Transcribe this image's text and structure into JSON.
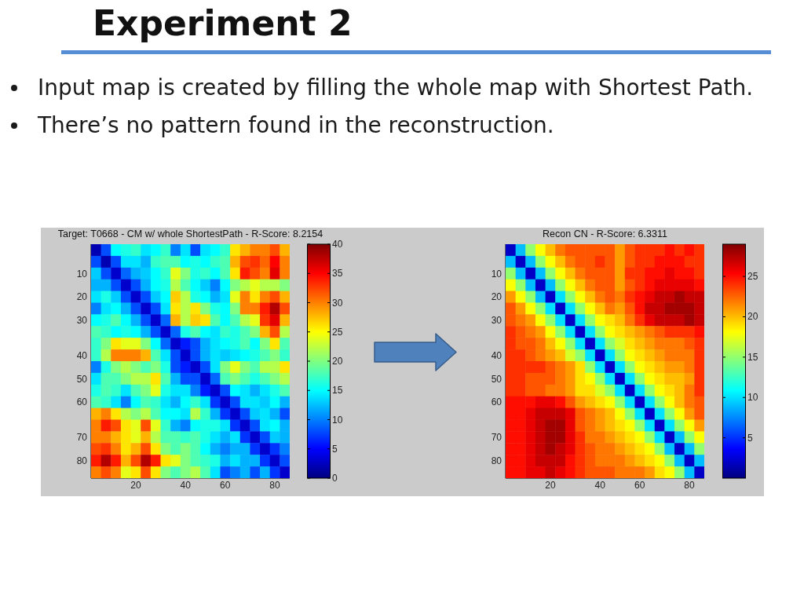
{
  "chart_data": [
    {
      "type": "other",
      "title": "Experiment 2",
      "annotations": [
        "Input map is created by filling the whole map with Shortest Path.",
        "There’s no pattern found in the reconstruction."
      ]
    },
    {
      "type": "heatmap",
      "title": "Target: T0668 - CM w/ whole ShortestPath - R-Score: 8.2154",
      "categories": [
        null,
        null,
        null,
        null,
        "20",
        null,
        null,
        null,
        null,
        "40",
        null,
        null,
        null,
        "60",
        null,
        null,
        null,
        null,
        "80",
        null
      ],
      "y_categories": [
        null,
        null,
        "10",
        null,
        "20",
        null,
        "30",
        null,
        null,
        "40",
        null,
        "50",
        null,
        "60",
        null,
        null,
        "70",
        null,
        "80",
        null
      ],
      "cells": [
        [
          2,
          8,
          15,
          16,
          17,
          14,
          15,
          17,
          10,
          14,
          8,
          14,
          15,
          17,
          26,
          28,
          30,
          30,
          32,
          28
        ],
        [
          8,
          2,
          8,
          14,
          14,
          12,
          17,
          18,
          18,
          15,
          16,
          15,
          17,
          18,
          28,
          32,
          33,
          31,
          35,
          30
        ],
        [
          13,
          8,
          3,
          9,
          12,
          13,
          15,
          17,
          24,
          20,
          16,
          17,
          15,
          18,
          26,
          34,
          32,
          30,
          36,
          30
        ],
        [
          12,
          12,
          8,
          3,
          8,
          12,
          15,
          16,
          22,
          18,
          15,
          13,
          10,
          15,
          20,
          22,
          24,
          22,
          22,
          20
        ],
        [
          14,
          16,
          13,
          8,
          3,
          8,
          13,
          15,
          27,
          22,
          16,
          15,
          12,
          14,
          24,
          30,
          26,
          30,
          32,
          28
        ],
        [
          10,
          14,
          15,
          12,
          8,
          3,
          8,
          14,
          26,
          22,
          26,
          20,
          16,
          15,
          20,
          30,
          30,
          34,
          38,
          32
        ],
        [
          15,
          16,
          18,
          15,
          12,
          8,
          3,
          9,
          28,
          22,
          27,
          26,
          18,
          15,
          18,
          22,
          24,
          33,
          36,
          28
        ],
        [
          18,
          17,
          15,
          16,
          15,
          12,
          8,
          3,
          9,
          16,
          18,
          15,
          14,
          17,
          16,
          18,
          20,
          28,
          32,
          22
        ],
        [
          17,
          20,
          26,
          24,
          24,
          20,
          15,
          9,
          3,
          6,
          8,
          12,
          14,
          15,
          16,
          18,
          15,
          20,
          26,
          18
        ],
        [
          17,
          22,
          30,
          30,
          30,
          28,
          18,
          14,
          8,
          3,
          8,
          12,
          14,
          13,
          14,
          15,
          16,
          18,
          20,
          17
        ],
        [
          10,
          16,
          20,
          22,
          20,
          18,
          20,
          16,
          8,
          6,
          3,
          8,
          14,
          20,
          24,
          20,
          18,
          22,
          22,
          26
        ],
        [
          14,
          18,
          18,
          20,
          22,
          22,
          26,
          18,
          12,
          8,
          8,
          3,
          9,
          18,
          20,
          18,
          16,
          18,
          20,
          22
        ],
        [
          16,
          18,
          17,
          14,
          18,
          20,
          24,
          16,
          14,
          14,
          10,
          6,
          3,
          8,
          15,
          14,
          12,
          14,
          16,
          18
        ],
        [
          18,
          17,
          14,
          10,
          15,
          18,
          17,
          14,
          12,
          15,
          17,
          14,
          7,
          3,
          8,
          14,
          14,
          13,
          15,
          12
        ],
        [
          28,
          30,
          26,
          22,
          20,
          22,
          18,
          15,
          15,
          14,
          22,
          17,
          12,
          7,
          3,
          8,
          13,
          14,
          12,
          8
        ],
        [
          30,
          34,
          32,
          26,
          24,
          32,
          24,
          17,
          12,
          10,
          15,
          16,
          16,
          14,
          7,
          3,
          8,
          14,
          15,
          12
        ],
        [
          30,
          30,
          28,
          26,
          24,
          28,
          22,
          18,
          18,
          17,
          18,
          16,
          14,
          12,
          14,
          7,
          3,
          8,
          13,
          12
        ],
        [
          32,
          33,
          30,
          26,
          28,
          32,
          26,
          20,
          18,
          20,
          18,
          15,
          12,
          10,
          12,
          12,
          7,
          3,
          7,
          10
        ],
        [
          34,
          38,
          34,
          28,
          32,
          38,
          34,
          26,
          24,
          20,
          18,
          17,
          16,
          12,
          14,
          12,
          12,
          7,
          3,
          8
        ],
        [
          30,
          32,
          30,
          24,
          26,
          32,
          26,
          20,
          18,
          20,
          22,
          18,
          14,
          8,
          10,
          12,
          8,
          12,
          7,
          3
        ]
      ],
      "clim": [
        0,
        40
      ],
      "cticks": [
        0,
        5,
        10,
        15,
        20,
        25,
        30,
        35,
        40
      ]
    },
    {
      "type": "heatmap",
      "title": "Recon CN - R-Score: 6.3311",
      "categories": [
        null,
        null,
        null,
        null,
        "20",
        null,
        null,
        null,
        null,
        "40",
        null,
        null,
        null,
        "60",
        null,
        null,
        null,
        null,
        "80",
        null
      ],
      "y_categories": [
        null,
        null,
        "10",
        null,
        "20",
        null,
        "30",
        null,
        null,
        "40",
        null,
        "50",
        null,
        "60",
        null,
        null,
        "70",
        null,
        "80",
        null
      ],
      "cells": [
        [
          2,
          9,
          15,
          18,
          20,
          22,
          23,
          23,
          23,
          23,
          23,
          21,
          23,
          24,
          24,
          24,
          25,
          24,
          25,
          24
        ],
        [
          9,
          2,
          9,
          15,
          18,
          20,
          22,
          23,
          23,
          24,
          23,
          21,
          23,
          24,
          24,
          25,
          25,
          25,
          24,
          24
        ],
        [
          15,
          9,
          2,
          9,
          15,
          18,
          20,
          22,
          23,
          23,
          23,
          21,
          24,
          24,
          25,
          25,
          26,
          25,
          25,
          24
        ],
        [
          18,
          15,
          9,
          2,
          9,
          15,
          18,
          20,
          22,
          23,
          23,
          21,
          23,
          24,
          25,
          26,
          26,
          26,
          26,
          25
        ],
        [
          21,
          18,
          15,
          9,
          2,
          10,
          15,
          18,
          20,
          22,
          23,
          22,
          24,
          25,
          26,
          27,
          27,
          28,
          27,
          27
        ],
        [
          23,
          21,
          18,
          15,
          10,
          2,
          10,
          15,
          18,
          20,
          22,
          21,
          23,
          25,
          27,
          27,
          28,
          28,
          28,
          27
        ],
        [
          23,
          22,
          21,
          18,
          15,
          10,
          2,
          10,
          15,
          18,
          19,
          20,
          22,
          24,
          26,
          27,
          27,
          27,
          28,
          27
        ],
        [
          24,
          23,
          22,
          21,
          18,
          15,
          10,
          2,
          10,
          15,
          18,
          19,
          20,
          21,
          22,
          23,
          24,
          24,
          24,
          25
        ],
        [
          24,
          23,
          23,
          22,
          20,
          18,
          15,
          10,
          2,
          10,
          15,
          17,
          19,
          20,
          21,
          22,
          22,
          22,
          23,
          24
        ],
        [
          24,
          24,
          23,
          22,
          21,
          20,
          17,
          15,
          10,
          2,
          10,
          15,
          18,
          19,
          20,
          21,
          22,
          22,
          22,
          24
        ],
        [
          24,
          24,
          24,
          24,
          23,
          22,
          21,
          19,
          15,
          10,
          2,
          10,
          15,
          18,
          19,
          20,
          21,
          21,
          22,
          24
        ],
        [
          24,
          24,
          23,
          23,
          23,
          22,
          21,
          19,
          18,
          15,
          10,
          2,
          10,
          15,
          18,
          19,
          20,
          20,
          21,
          24
        ],
        [
          24,
          24,
          23,
          23,
          22,
          22,
          21,
          19,
          19,
          17,
          15,
          10,
          2,
          10,
          15,
          18,
          19,
          20,
          22,
          24
        ],
        [
          25,
          25,
          25,
          26,
          26,
          25,
          23,
          21,
          20,
          19,
          18,
          15,
          10,
          2,
          10,
          15,
          18,
          20,
          22,
          23
        ],
        [
          25,
          25,
          26,
          27,
          27,
          27,
          26,
          23,
          22,
          21,
          20,
          18,
          15,
          10,
          2,
          10,
          15,
          18,
          21,
          23
        ],
        [
          25,
          25,
          26,
          27,
          28,
          28,
          26,
          23,
          22,
          21,
          20,
          19,
          18,
          15,
          10,
          2,
          10,
          15,
          18,
          21
        ],
        [
          25,
          25,
          26,
          27,
          28,
          28,
          26,
          24,
          22,
          22,
          21,
          20,
          19,
          18,
          15,
          10,
          2,
          9,
          15,
          18
        ],
        [
          25,
          25,
          26,
          27,
          28,
          27,
          26,
          24,
          23,
          22,
          22,
          21,
          20,
          19,
          18,
          15,
          9,
          2,
          9,
          15
        ],
        [
          25,
          25,
          26,
          27,
          27,
          27,
          25,
          24,
          23,
          22,
          22,
          22,
          21,
          20,
          19,
          18,
          15,
          9,
          2,
          9
        ],
        [
          25,
          25,
          26,
          26,
          27,
          26,
          25,
          24,
          23,
          23,
          23,
          22,
          22,
          22,
          21,
          19,
          18,
          15,
          9,
          2
        ]
      ],
      "clim": [
        0,
        29
      ],
      "cticks": [
        5,
        10,
        15,
        20,
        25
      ]
    }
  ]
}
